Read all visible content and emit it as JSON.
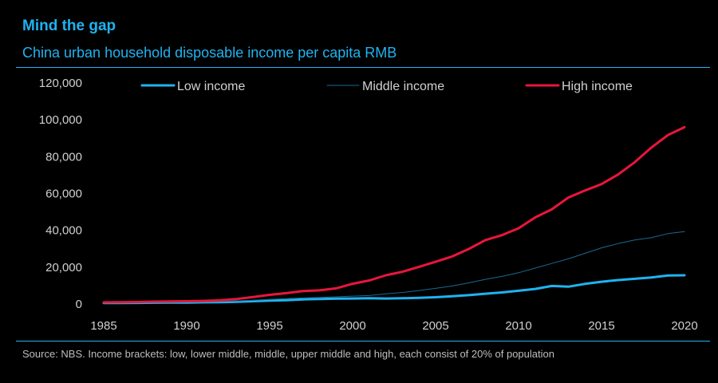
{
  "title": "Mind the gap",
  "subtitle": "China urban household disposable income per capita RMB",
  "source": "Source: NBS. Income brackets: low, lower middle, middle, upper middle and high, each consist of 20% of population",
  "chart_data": {
    "type": "line",
    "x": [
      1985,
      1986,
      1987,
      1988,
      1989,
      1990,
      1991,
      1992,
      1993,
      1994,
      1995,
      1996,
      1997,
      1998,
      1999,
      2000,
      2001,
      2002,
      2003,
      2004,
      2005,
      2006,
      2007,
      2008,
      2009,
      2010,
      2011,
      2012,
      2013,
      2014,
      2015,
      2016,
      2017,
      2018,
      2019,
      2020
    ],
    "xlim": [
      1985,
      2020
    ],
    "xticks": [
      "1985",
      "1990",
      "1995",
      "2000",
      "2005",
      "2010",
      "2015",
      "2020"
    ],
    "ylim": [
      0,
      120000
    ],
    "yticks": [
      "0",
      "20,000",
      "40,000",
      "60,000",
      "80,000",
      "100,000",
      "120,000"
    ],
    "grid": false,
    "legend_position": "top",
    "series": [
      {
        "name": "Low income",
        "color": "#1fb3f0",
        "values": [
          500,
          550,
          600,
          700,
          750,
          800,
          900,
          1000,
          1200,
          1500,
          1800,
          2100,
          2500,
          2700,
          2900,
          3000,
          3100,
          3000,
          3100,
          3400,
          3700,
          4200,
          4800,
          5600,
          6300,
          7200,
          8200,
          9800,
          9400,
          10900,
          12100,
          13000,
          13700,
          14400,
          15500,
          15600
        ]
      },
      {
        "name": "Middle income",
        "color": "#1a6a90",
        "values": [
          650,
          700,
          800,
          950,
          1000,
          1100,
          1200,
          1400,
          1700,
          2100,
          2500,
          2900,
          3300,
          3600,
          3900,
          4300,
          4600,
          5500,
          6300,
          7300,
          8500,
          9800,
          11500,
          13400,
          15000,
          17000,
          19500,
          22000,
          24500,
          27500,
          30500,
          32800,
          34800,
          36000,
          38200,
          39300
        ]
      },
      {
        "name": "High income",
        "color": "#e8163c",
        "values": [
          900,
          1000,
          1100,
          1300,
          1400,
          1500,
          1700,
          2000,
          2700,
          3800,
          5000,
          5900,
          7000,
          7400,
          8500,
          11000,
          12800,
          15600,
          17500,
          20200,
          22900,
          25800,
          29900,
          34700,
          37400,
          41100,
          47000,
          51400,
          57800,
          61600,
          65100,
          70300,
          77000,
          84900,
          91700,
          96000
        ]
      }
    ]
  }
}
